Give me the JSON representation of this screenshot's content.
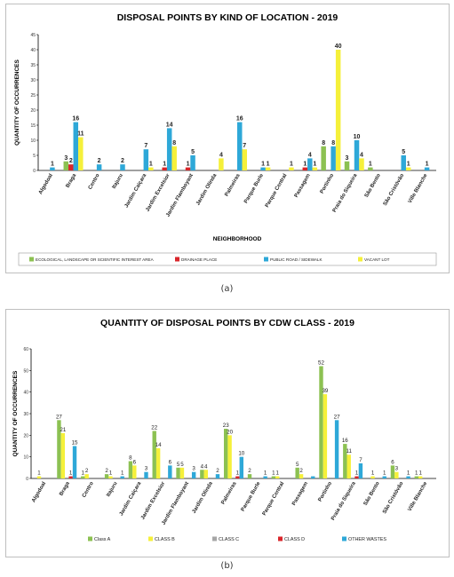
{
  "captions": [
    "(a)",
    "(b)"
  ],
  "chart_data": [
    {
      "type": "bar",
      "title": "DISPOSAL POINTS BY KIND OF LOCATION - 2019",
      "xlabel": "NEIGHBORHOOD",
      "ylabel": "QUANTITY OF OCCURRENCES",
      "ylim": [
        0,
        45
      ],
      "yticks": [
        0,
        5,
        10,
        15,
        20,
        25,
        30,
        35,
        40,
        45
      ],
      "grid": false,
      "legend": "bottom",
      "categories": [
        "Algodoal",
        "Braga",
        "Centro",
        "Itajuru",
        "Jardim Caiçara",
        "Jardim Excelsior",
        "Jardim Flamboyant",
        "Jardim Olinda",
        "Palmeiras",
        "Parque Burle",
        "Parque Central",
        "Passagem",
        "Portinho",
        "Praia do Siqueira",
        "São Bento",
        "São Cristóvão",
        "Ville Blanche"
      ],
      "series": [
        {
          "name": "ECOLOGICAL, LANDSCAPE OR SCIENTIFIC INTEREST AREA",
          "color": "#8cc152",
          "values": [
            0,
            3,
            0,
            0,
            0,
            0,
            0,
            0,
            0,
            0,
            0,
            0,
            8,
            3,
            1,
            0,
            0
          ]
        },
        {
          "name": "DRAINAGE PLACE",
          "color": "#d9262b",
          "values": [
            0,
            2,
            0,
            0,
            0,
            1,
            1,
            0,
            0,
            0,
            0,
            1,
            0,
            0,
            0,
            0,
            0
          ]
        },
        {
          "name": "PUBLIC ROAD / SIDEWALK",
          "color": "#2ea8d8",
          "values": [
            1,
            16,
            2,
            2,
            7,
            14,
            5,
            0,
            16,
            1,
            0,
            4,
            8,
            10,
            0,
            5,
            1
          ]
        },
        {
          "name": "VACANT LOT",
          "color": "#f5f03a",
          "values": [
            0,
            11,
            0,
            0,
            1,
            8,
            0,
            4,
            7,
            1,
            1,
            1,
            40,
            4,
            0,
            1,
            0
          ]
        }
      ],
      "labels": [
        [
          null,
          3,
          null,
          null,
          null,
          null,
          null,
          null,
          null,
          null,
          null,
          null,
          8,
          3,
          1,
          null,
          null
        ],
        [
          null,
          2,
          null,
          null,
          null,
          1,
          1,
          null,
          null,
          null,
          null,
          1,
          null,
          null,
          null,
          null,
          null
        ],
        [
          1,
          16,
          2,
          2,
          7,
          14,
          5,
          null,
          16,
          1,
          null,
          4,
          8,
          10,
          null,
          5,
          1
        ],
        [
          null,
          11,
          null,
          null,
          1,
          8,
          null,
          4,
          7,
          1,
          1,
          1,
          40,
          4,
          null,
          1,
          null
        ]
      ]
    },
    {
      "type": "bar",
      "title": "QUANTITY OF DISPOSAL POINTS BY CDW CLASS - 2019",
      "xlabel": "",
      "ylabel": "QUANTITY OF OCCURRENCES",
      "ylim": [
        0,
        60
      ],
      "yticks": [
        0,
        10,
        20,
        30,
        40,
        50,
        60
      ],
      "grid": false,
      "legend": "bottom",
      "categories": [
        "Algodoal",
        "Braga",
        "Centro",
        "Itajuru",
        "Jardim Caiçara",
        "Jardim Excelsior",
        "Jardim Flamboyant",
        "Jardim Olinda",
        "Palmeiras",
        "Parque Burle",
        "Parque Central",
        "Passagem",
        "Portinho",
        "Praia do Siqueira",
        "São Bento",
        "São Cristóvão",
        "Ville Blanche"
      ],
      "series": [
        {
          "name": "Class A",
          "color": "#8cc152",
          "values": [
            0,
            27,
            1,
            2,
            8,
            22,
            5,
            4,
            23,
            2,
            1,
            5,
            52,
            16,
            0,
            6,
            1
          ]
        },
        {
          "name": "CLASS B",
          "color": "#f5f03a",
          "values": [
            1,
            21,
            2,
            1,
            6,
            14,
            5,
            4,
            20,
            0,
            1,
            2,
            39,
            11,
            1,
            3,
            1
          ]
        },
        {
          "name": "CLASS C",
          "color": "#a6a6a6",
          "values": [
            0,
            0,
            0,
            0,
            0,
            0,
            0,
            0,
            0,
            0,
            0,
            0,
            0,
            0,
            0,
            0,
            0
          ]
        },
        {
          "name": "CLASS D",
          "color": "#d9262b",
          "values": [
            0,
            1,
            0,
            0,
            0,
            0,
            0,
            0,
            1,
            0,
            0,
            0,
            0,
            1,
            0,
            0,
            0
          ]
        },
        {
          "name": "OTHER WASTES",
          "color": "#2ea8d8",
          "values": [
            0,
            15,
            0,
            1,
            3,
            6,
            3,
            2,
            10,
            1,
            0,
            1,
            27,
            7,
            1,
            1,
            0
          ]
        }
      ],
      "labels": [
        [
          null,
          27,
          1,
          2,
          8,
          22,
          5,
          4,
          23,
          2,
          1,
          5,
          52,
          16,
          null,
          6,
          1
        ],
        [
          1,
          21,
          2,
          1,
          6,
          14,
          5,
          4,
          20,
          null,
          1,
          2,
          39,
          11,
          1,
          3,
          1
        ],
        [
          null,
          null,
          null,
          null,
          null,
          null,
          null,
          null,
          null,
          null,
          null,
          null,
          null,
          null,
          null,
          null,
          null
        ],
        [
          null,
          1,
          null,
          null,
          null,
          null,
          null,
          null,
          1,
          null,
          null,
          null,
          null,
          1,
          null,
          null,
          null
        ],
        [
          null,
          15,
          null,
          1,
          3,
          6,
          3,
          2,
          10,
          1,
          null,
          null,
          27,
          7,
          1,
          1,
          null
        ]
      ]
    }
  ]
}
